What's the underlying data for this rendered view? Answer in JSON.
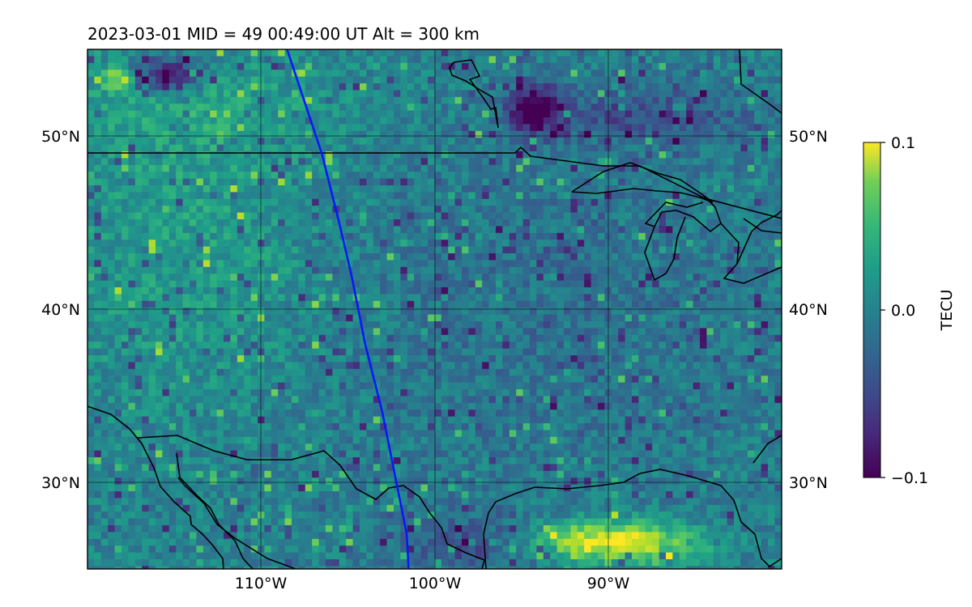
{
  "title": "2023-03-01  MID =  49    00:49:00  UT  Alt = 300 km",
  "map": {
    "lon_range": [
      -120,
      -80
    ],
    "lat_range": [
      25,
      55
    ],
    "gridlines": true,
    "lat_labels": [
      "50°N",
      "40°N",
      "30°N"
    ],
    "lon_labels": [
      "110°W",
      "100°W",
      "90°W"
    ],
    "coastlines": true,
    "borders": true,
    "track_color": "#0a14ff"
  },
  "colorbar": {
    "label": "TECU",
    "ticks": [
      "0.1",
      "0.0",
      "−0.1"
    ],
    "vmin": -0.1,
    "vmax": 0.1,
    "colormap": "viridis"
  },
  "chart_data": {
    "type": "heatmap",
    "title": "2023-03-01  MID =  49    00:49:00  UT  Alt = 300 km",
    "x_range": [
      -120,
      -80
    ],
    "y_range": [
      25,
      55
    ],
    "value_range": [
      -0.1,
      0.1
    ],
    "units": "TECU",
    "field_description": "TEC perturbation map (viridis) over central North America; mostly teal/blue, green-yellow patches in the northwest, strong positive (yellow) patch near 26–27°N 92–87°W, purple negative patches near 54°N 115°W and 52°N 93°W",
    "track": [
      [
        -108.5,
        55
      ],
      [
        -107.5,
        52
      ],
      [
        -106.5,
        49
      ],
      [
        -105.5,
        45
      ],
      [
        -104.8,
        42
      ],
      [
        -104.0,
        38
      ],
      [
        -103.0,
        34
      ],
      [
        -102.2,
        30
      ],
      [
        -101.6,
        27
      ],
      [
        -101.5,
        25
      ]
    ]
  }
}
